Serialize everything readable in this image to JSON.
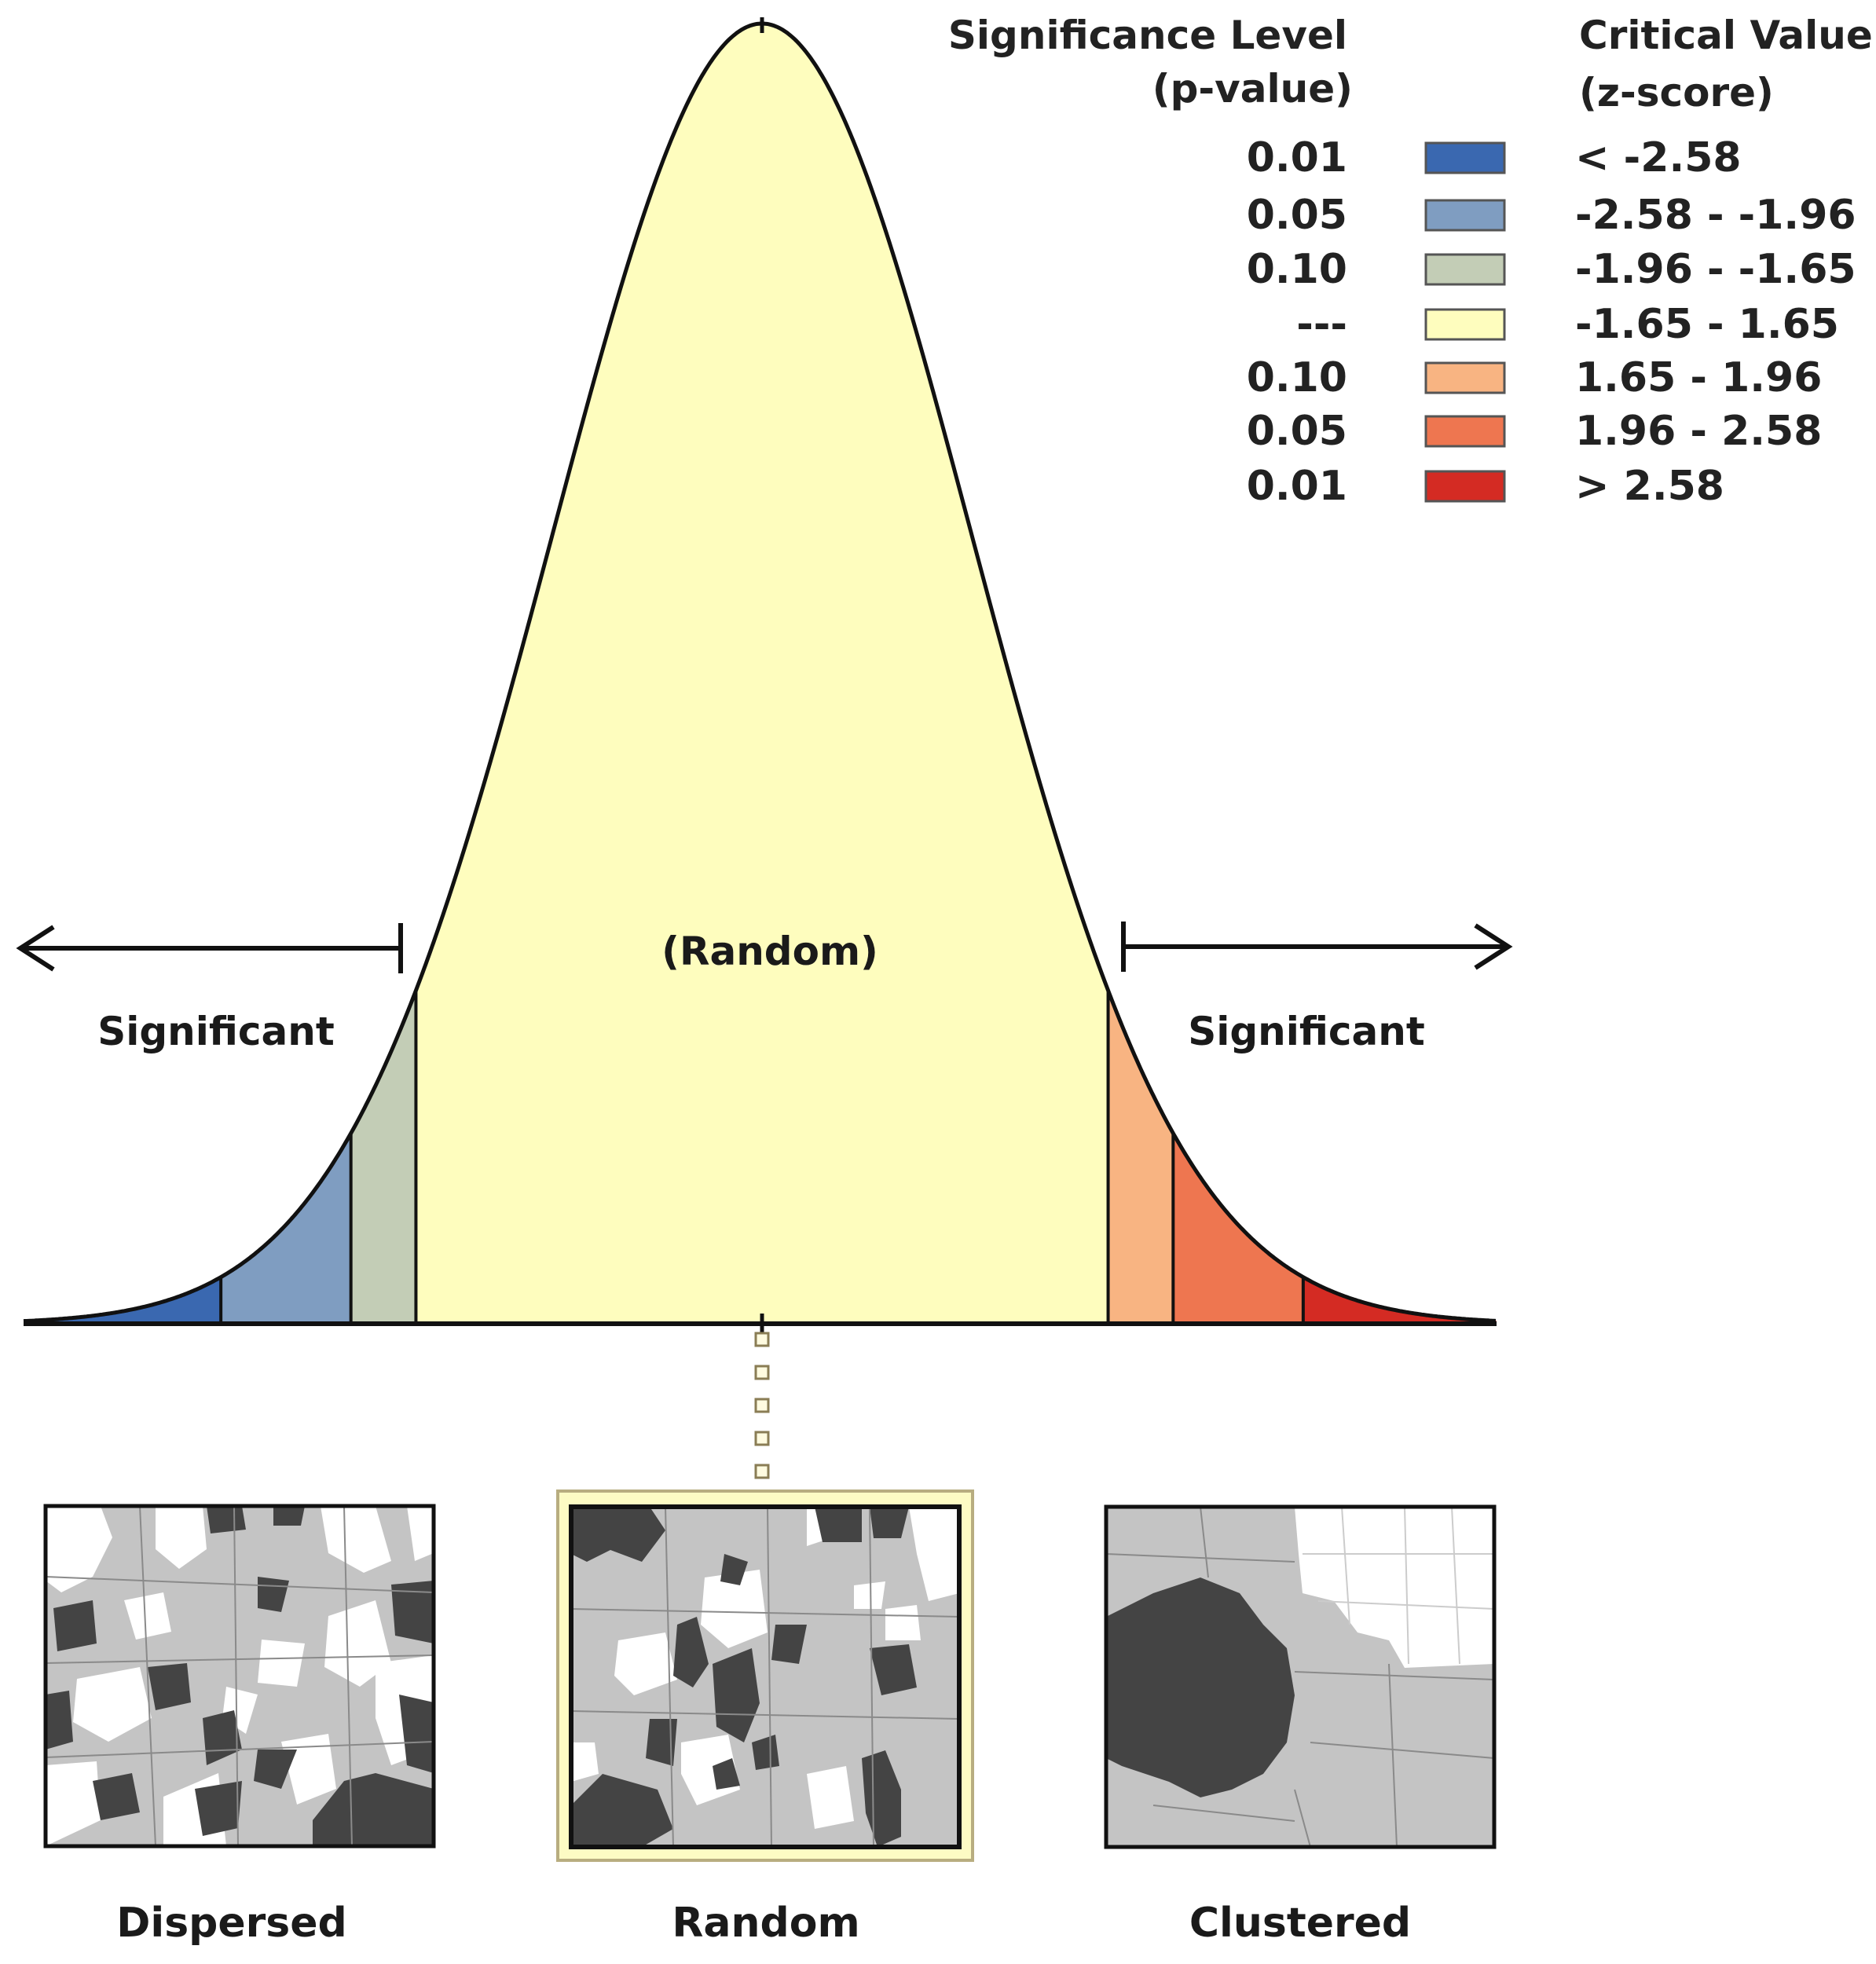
{
  "legend": {
    "significance_header": [
      "Significance Level",
      "(p-value)"
    ],
    "critical_header": [
      "Critical Value",
      "(z-score)"
    ],
    "rows": [
      {
        "p_value": "0.01",
        "z_range": "< -2.58",
        "color": "#3a68b0"
      },
      {
        "p_value": "0.05",
        "z_range": "-2.58 - -1.96",
        "color": "#7f9dc1"
      },
      {
        "p_value": "0.10",
        "z_range": "-1.96 - -1.65",
        "color": "#c3cdb6"
      },
      {
        "p_value": "---",
        "z_range": "-1.65 - 1.65",
        "color": "#fefdbe"
      },
      {
        "p_value": "0.10",
        "z_range": "1.65 - 1.96",
        "color": "#f8b482"
      },
      {
        "p_value": "0.05",
        "z_range": "1.96 - 2.58",
        "color": "#ee7650"
      },
      {
        "p_value": "0.01",
        "z_range": "> 2.58",
        "color": "#d42b23"
      }
    ]
  },
  "curve": {
    "center_label": "(Random)",
    "left_label": "Significant",
    "right_label": "Significant",
    "critical_values": [
      -2.58,
      -1.96,
      -1.65,
      1.65,
      1.96,
      2.58
    ]
  },
  "maps": [
    {
      "name": "map-dispersed",
      "caption": "Dispersed",
      "highlighted": false
    },
    {
      "name": "map-random",
      "caption": "Random",
      "highlighted": true
    },
    {
      "name": "map-clustered",
      "caption": "Clustered",
      "highlighted": false
    }
  ],
  "colors": {
    "dark_polygon": "#444444",
    "light_polygon": "#c4c4c4",
    "highlight_bg": "#fdfbc4"
  }
}
